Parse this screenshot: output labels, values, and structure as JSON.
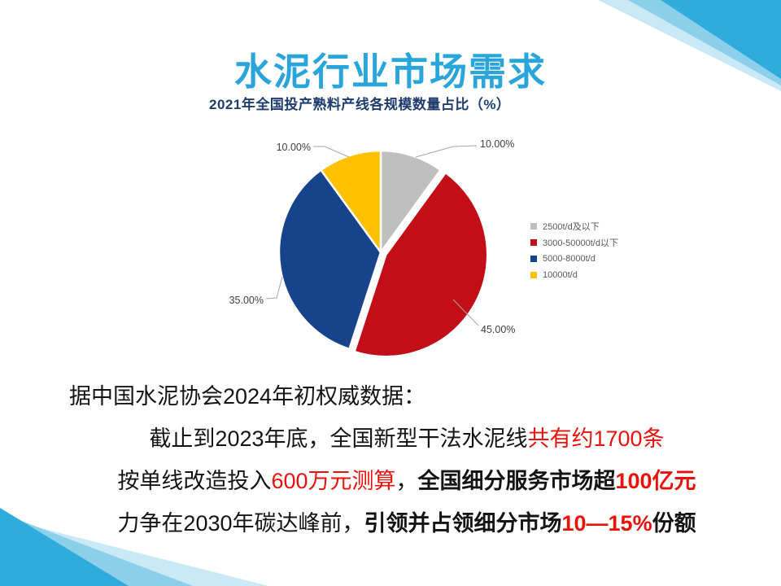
{
  "slide": {
    "title": "水泥行业市场需求",
    "title_color": "#29A5DC"
  },
  "chart_data": {
    "type": "pie",
    "title": "2021年全国投产熟料产线各规模数量占比（%）",
    "title_color": "#1E3C6E",
    "start_angle_deg": 0,
    "direction": "clockwise",
    "legend_position": "right",
    "series": [
      {
        "label": "2500t/d及以下",
        "value": 10,
        "data_label": "10.00%",
        "color": "#BFBFBF",
        "exploded": false
      },
      {
        "label": "3000-50000t/d以下",
        "value": 45,
        "data_label": "45.00%",
        "color": "#C30D17",
        "exploded": true
      },
      {
        "label": "5000-8000t/d",
        "value": 35,
        "data_label": "35.00%",
        "color": "#17438D",
        "exploded": false
      },
      {
        "label": "10000t/d",
        "value": 10,
        "data_label": "10.00%",
        "color": "#FFC000",
        "exploded": false
      }
    ]
  },
  "body": {
    "lines": [
      {
        "segments": [
          {
            "text": "据中国水泥协会2024年初权威数据：",
            "red": false,
            "bold": false
          }
        ]
      },
      {
        "segments": [
          {
            "text": "截止到2023年底，全国新型干法水泥线",
            "red": false,
            "bold": false
          },
          {
            "text": "共有约1700条",
            "red": true,
            "bold": false
          }
        ]
      },
      {
        "segments": [
          {
            "text": "按单线改造投入",
            "red": false,
            "bold": false
          },
          {
            "text": "600万元测算",
            "red": true,
            "bold": false
          },
          {
            "text": "，",
            "red": false,
            "bold": false
          },
          {
            "text": "全国细分服务市场超",
            "red": false,
            "bold": true
          },
          {
            "text": "100亿元",
            "red": true,
            "bold": true
          }
        ]
      },
      {
        "segments": [
          {
            "text": "力争在2030年碳达峰前，",
            "red": false,
            "bold": false
          },
          {
            "text": "引领并占领细分市场",
            "red": false,
            "bold": true
          },
          {
            "text": "10—15%",
            "red": true,
            "bold": true
          },
          {
            "text": "份额",
            "red": false,
            "bold": true
          }
        ]
      }
    ]
  },
  "decor": {
    "dark": "#2FABDC",
    "mid": "#8CCFEA",
    "light": "#C9E9F6"
  }
}
